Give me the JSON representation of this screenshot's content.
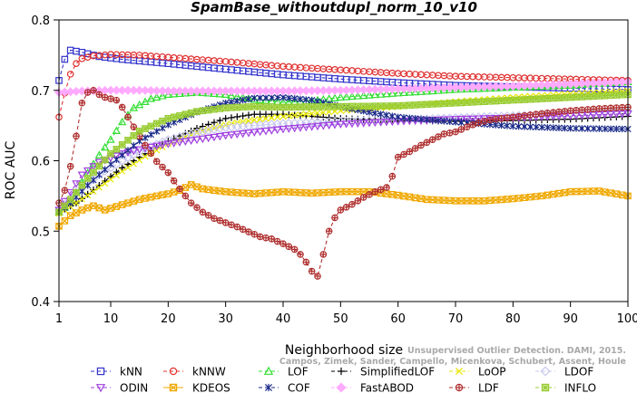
{
  "chart_data": {
    "type": "line",
    "title": "SpamBase_withoutdupl_norm_10_v10",
    "xlabel": "Neighborhood size",
    "ylabel": "ROC AUC",
    "xlim": [
      1,
      100
    ],
    "ylim": [
      0.4,
      0.8
    ],
    "x_ticks": [
      1,
      10,
      20,
      30,
      40,
      50,
      60,
      70,
      80,
      90,
      100
    ],
    "y_ticks": [
      0.4,
      0.5,
      0.6,
      0.7,
      0.8
    ],
    "legend_position": "bottom",
    "credit": [
      "Unsupervised Outlier Detection. DAMI, 2015.",
      "Campos, Zimek, Sander, Campello, Micenkova, Schubert, Assent, Houle"
    ],
    "series": [
      {
        "name": "kNN",
        "color": "#3333cc",
        "marker": "square",
        "dash": "dash",
        "points": [
          [
            1,
            0.714
          ],
          [
            2,
            0.744
          ],
          [
            3,
            0.757
          ],
          [
            5,
            0.754
          ],
          [
            8,
            0.748
          ],
          [
            12,
            0.744
          ],
          [
            16,
            0.741
          ],
          [
            20,
            0.738
          ],
          [
            30,
            0.73
          ],
          [
            40,
            0.722
          ],
          [
            50,
            0.716
          ],
          [
            60,
            0.711
          ],
          [
            70,
            0.707
          ],
          [
            80,
            0.705
          ],
          [
            90,
            0.703
          ],
          [
            100,
            0.701
          ]
        ]
      },
      {
        "name": "kNNW",
        "color": "#e03030",
        "marker": "circle",
        "dash": "dash",
        "points": [
          [
            1,
            0.662
          ],
          [
            2,
            0.696
          ],
          [
            3,
            0.723
          ],
          [
            4,
            0.738
          ],
          [
            5,
            0.745
          ],
          [
            7,
            0.749
          ],
          [
            10,
            0.751
          ],
          [
            15,
            0.75
          ],
          [
            20,
            0.747
          ],
          [
            30,
            0.741
          ],
          [
            40,
            0.734
          ],
          [
            50,
            0.729
          ],
          [
            60,
            0.724
          ],
          [
            70,
            0.72
          ],
          [
            80,
            0.718
          ],
          [
            90,
            0.716
          ],
          [
            100,
            0.714
          ]
        ]
      },
      {
        "name": "LOF",
        "color": "#33dd33",
        "marker": "triangle-up",
        "dash": "dash",
        "points": [
          [
            1,
            0.527
          ],
          [
            3,
            0.54
          ],
          [
            5,
            0.57
          ],
          [
            8,
            0.608
          ],
          [
            10,
            0.63
          ],
          [
            12,
            0.655
          ],
          [
            14,
            0.675
          ],
          [
            17,
            0.688
          ],
          [
            20,
            0.694
          ],
          [
            25,
            0.697
          ],
          [
            30,
            0.694
          ],
          [
            35,
            0.687
          ],
          [
            40,
            0.683
          ],
          [
            45,
            0.685
          ],
          [
            50,
            0.69
          ],
          [
            60,
            0.696
          ],
          [
            70,
            0.701
          ],
          [
            80,
            0.704
          ],
          [
            90,
            0.707
          ],
          [
            100,
            0.712
          ]
        ]
      },
      {
        "name": "SimplifiedLOF",
        "color": "#000000",
        "marker": "plus",
        "dash": "dash",
        "points": [
          [
            1,
            0.527
          ],
          [
            4,
            0.54
          ],
          [
            8,
            0.565
          ],
          [
            12,
            0.59
          ],
          [
            16,
            0.61
          ],
          [
            20,
            0.628
          ],
          [
            25,
            0.646
          ],
          [
            30,
            0.66
          ],
          [
            35,
            0.666
          ],
          [
            40,
            0.666
          ],
          [
            45,
            0.663
          ],
          [
            50,
            0.66
          ],
          [
            60,
            0.657
          ],
          [
            70,
            0.656
          ],
          [
            80,
            0.657
          ],
          [
            90,
            0.659
          ],
          [
            100,
            0.663
          ]
        ]
      },
      {
        "name": "LoOP",
        "color": "#e6e600",
        "marker": "x",
        "dash": "dash",
        "points": [
          [
            1,
            0.525
          ],
          [
            4,
            0.54
          ],
          [
            8,
            0.562
          ],
          [
            12,
            0.585
          ],
          [
            16,
            0.606
          ],
          [
            20,
            0.624
          ],
          [
            25,
            0.64
          ],
          [
            30,
            0.651
          ],
          [
            35,
            0.658
          ],
          [
            40,
            0.663
          ],
          [
            50,
            0.671
          ],
          [
            60,
            0.677
          ],
          [
            70,
            0.684
          ],
          [
            80,
            0.69
          ],
          [
            90,
            0.695
          ],
          [
            100,
            0.699
          ]
        ]
      },
      {
        "name": "LDOF",
        "color": "#c8c8f0",
        "marker": "diamond",
        "dash": "dash",
        "points": [
          [
            1,
            0.53
          ],
          [
            4,
            0.555
          ],
          [
            8,
            0.58
          ],
          [
            12,
            0.6
          ],
          [
            16,
            0.617
          ],
          [
            20,
            0.63
          ],
          [
            25,
            0.64
          ],
          [
            30,
            0.647
          ],
          [
            40,
            0.653
          ],
          [
            50,
            0.656
          ],
          [
            60,
            0.658
          ],
          [
            70,
            0.661
          ],
          [
            80,
            0.664
          ],
          [
            90,
            0.667
          ],
          [
            100,
            0.67
          ]
        ]
      },
      {
        "name": "ODIN",
        "color": "#a040e0",
        "marker": "triangle-down",
        "dash": "dash",
        "points": [
          [
            1,
            0.53
          ],
          [
            3,
            0.555
          ],
          [
            5,
            0.58
          ],
          [
            8,
            0.598
          ],
          [
            12,
            0.61
          ],
          [
            16,
            0.618
          ],
          [
            20,
            0.624
          ],
          [
            25,
            0.63
          ],
          [
            30,
            0.636
          ],
          [
            40,
            0.645
          ],
          [
            50,
            0.652
          ],
          [
            60,
            0.656
          ],
          [
            70,
            0.659
          ],
          [
            80,
            0.661
          ],
          [
            90,
            0.664
          ],
          [
            100,
            0.667
          ]
        ]
      },
      {
        "name": "KDEOS",
        "color": "#f0a800",
        "marker": "box-x",
        "dash": "solid",
        "points": [
          [
            1,
            0.507
          ],
          [
            3,
            0.522
          ],
          [
            5,
            0.53
          ],
          [
            7,
            0.536
          ],
          [
            9,
            0.53
          ],
          [
            11,
            0.535
          ],
          [
            13,
            0.54
          ],
          [
            15,
            0.545
          ],
          [
            18,
            0.55
          ],
          [
            20,
            0.553
          ],
          [
            22,
            0.558
          ],
          [
            24,
            0.566
          ],
          [
            26,
            0.56
          ],
          [
            30,
            0.556
          ],
          [
            35,
            0.553
          ],
          [
            40,
            0.556
          ],
          [
            45,
            0.554
          ],
          [
            50,
            0.556
          ],
          [
            55,
            0.556
          ],
          [
            60,
            0.551
          ],
          [
            65,
            0.545
          ],
          [
            70,
            0.543
          ],
          [
            75,
            0.543
          ],
          [
            80,
            0.546
          ],
          [
            85,
            0.55
          ],
          [
            90,
            0.556
          ],
          [
            95,
            0.557
          ],
          [
            100,
            0.55
          ]
        ]
      },
      {
        "name": "COF",
        "color": "#1a2a8a",
        "marker": "asterisk",
        "dash": "dash",
        "points": [
          [
            1,
            0.527
          ],
          [
            3,
            0.54
          ],
          [
            6,
            0.565
          ],
          [
            10,
            0.595
          ],
          [
            15,
            0.628
          ],
          [
            20,
            0.651
          ],
          [
            25,
            0.669
          ],
          [
            30,
            0.682
          ],
          [
            35,
            0.689
          ],
          [
            40,
            0.69
          ],
          [
            45,
            0.686
          ],
          [
            50,
            0.677
          ],
          [
            55,
            0.669
          ],
          [
            60,
            0.662
          ],
          [
            70,
            0.655
          ],
          [
            80,
            0.649
          ],
          [
            90,
            0.646
          ],
          [
            100,
            0.645
          ]
        ]
      },
      {
        "name": "FastABOD",
        "color": "#ffaaff",
        "marker": "diamond-filled",
        "dash": "dash",
        "points": [
          [
            1,
            0.697
          ],
          [
            5,
            0.699
          ],
          [
            10,
            0.7
          ],
          [
            15,
            0.7
          ],
          [
            20,
            0.699
          ],
          [
            25,
            0.699
          ],
          [
            30,
            0.699
          ],
          [
            40,
            0.699
          ],
          [
            50,
            0.7
          ],
          [
            60,
            0.702
          ],
          [
            70,
            0.704
          ],
          [
            80,
            0.706
          ],
          [
            90,
            0.709
          ],
          [
            100,
            0.712
          ]
        ]
      },
      {
        "name": "LDF",
        "color": "#b03030",
        "marker": "circle-plus",
        "dash": "dash",
        "points": [
          [
            1,
            0.54
          ],
          [
            2,
            0.558
          ],
          [
            3,
            0.592
          ],
          [
            4,
            0.635
          ],
          [
            5,
            0.682
          ],
          [
            6,
            0.697
          ],
          [
            7,
            0.7
          ],
          [
            8,
            0.694
          ],
          [
            9,
            0.69
          ],
          [
            10,
            0.688
          ],
          [
            11,
            0.686
          ],
          [
            12,
            0.676
          ],
          [
            13,
            0.662
          ],
          [
            14,
            0.648
          ],
          [
            16,
            0.622
          ],
          [
            18,
            0.599
          ],
          [
            20,
            0.583
          ],
          [
            22,
            0.56
          ],
          [
            24,
            0.54
          ],
          [
            26,
            0.527
          ],
          [
            28,
            0.518
          ],
          [
            30,
            0.512
          ],
          [
            32,
            0.506
          ],
          [
            34,
            0.499
          ],
          [
            36,
            0.492
          ],
          [
            38,
            0.489
          ],
          [
            40,
            0.482
          ],
          [
            42,
            0.474
          ],
          [
            43,
            0.467
          ],
          [
            44,
            0.456
          ],
          [
            45,
            0.443
          ],
          [
            46,
            0.436
          ],
          [
            47,
            0.467
          ],
          [
            48,
            0.5
          ],
          [
            49,
            0.519
          ],
          [
            50,
            0.53
          ],
          [
            52,
            0.538
          ],
          [
            54,
            0.548
          ],
          [
            56,
            0.556
          ],
          [
            58,
            0.562
          ],
          [
            59,
            0.578
          ],
          [
            60,
            0.605
          ],
          [
            62,
            0.613
          ],
          [
            64,
            0.622
          ],
          [
            66,
            0.63
          ],
          [
            68,
            0.638
          ],
          [
            70,
            0.641
          ],
          [
            72,
            0.648
          ],
          [
            74,
            0.654
          ],
          [
            76,
            0.658
          ],
          [
            78,
            0.66
          ],
          [
            80,
            0.662
          ],
          [
            85,
            0.667
          ],
          [
            90,
            0.671
          ],
          [
            95,
            0.674
          ],
          [
            100,
            0.676
          ]
        ]
      },
      {
        "name": "INFLO",
        "color": "#99cc33",
        "marker": "box-asterisk",
        "dash": "dash",
        "points": [
          [
            1,
            0.527
          ],
          [
            3,
            0.545
          ],
          [
            6,
            0.575
          ],
          [
            10,
            0.61
          ],
          [
            15,
            0.642
          ],
          [
            20,
            0.66
          ],
          [
            25,
            0.67
          ],
          [
            30,
            0.675
          ],
          [
            35,
            0.677
          ],
          [
            40,
            0.676
          ],
          [
            50,
            0.677
          ],
          [
            60,
            0.678
          ],
          [
            70,
            0.682
          ],
          [
            80,
            0.686
          ],
          [
            90,
            0.69
          ],
          [
            100,
            0.694
          ]
        ]
      }
    ]
  }
}
